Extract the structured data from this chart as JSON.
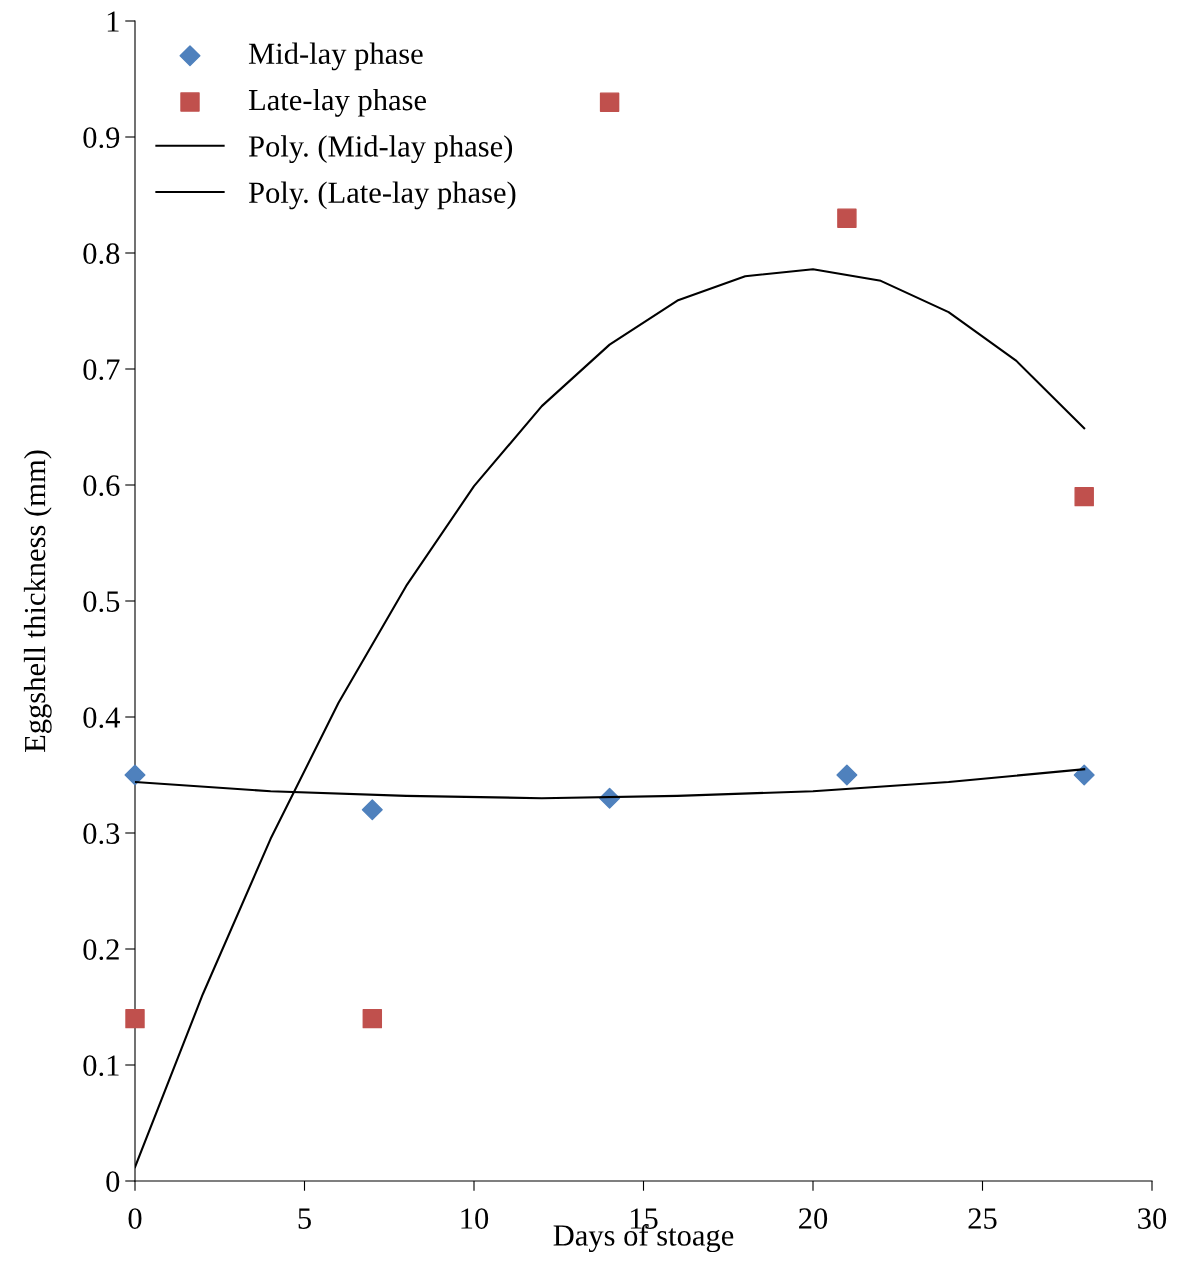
{
  "chart_data": {
    "type": "scatter",
    "xlabel": "Days of stoage",
    "ylabel": "Eggshell thickness (mm)",
    "xlim": [
      0,
      30
    ],
    "xticks": [
      0,
      5,
      10,
      15,
      20,
      25,
      30
    ],
    "ylim": [
      0,
      1
    ],
    "yticks": [
      0,
      {
        "value": 0.1,
        "label": "0.1"
      },
      {
        "value": 0.2,
        "label": "0.2"
      },
      {
        "value": 0.3,
        "label": "0.3"
      },
      {
        "value": 0.4,
        "label": "0.4"
      },
      {
        "value": 0.5,
        "label": "0.5"
      },
      {
        "value": 0.6,
        "label": "0.6"
      },
      {
        "value": 0.7,
        "label": "0.7"
      },
      {
        "value": 0.8,
        "label": "0.8"
      },
      {
        "value": 0.9,
        "label": "0.9"
      },
      1
    ],
    "grid": false,
    "legend": "top left",
    "series": [
      {
        "name": "Mid-lay phase",
        "marker": "diamond",
        "color": "#4f81bd",
        "x": [
          0,
          7,
          14,
          21,
          28
        ],
        "values": [
          0.35,
          0.32,
          0.33,
          0.35,
          0.35
        ]
      },
      {
        "name": "Late-lay phase",
        "marker": "square",
        "color": "#c0504d",
        "x": [
          0,
          7,
          14,
          21,
          28
        ],
        "values": [
          0.14,
          0.14,
          0.93,
          0.83,
          0.59
        ]
      },
      {
        "name": "Poly. (Mid-lay phase)",
        "type": "line",
        "marker": "none",
        "line_style": "solid",
        "color": "#000000",
        "x": [
          0,
          4,
          8,
          12,
          16,
          20,
          24,
          28
        ],
        "values": [
          0.344,
          0.336,
          0.332,
          0.33,
          0.332,
          0.336,
          0.344,
          0.355
        ]
      },
      {
        "name": "Poly. (Late-lay phase)",
        "type": "line",
        "marker": "none",
        "line_style": "solid",
        "color": "#000000",
        "x": [
          0,
          2,
          4,
          6,
          8,
          10,
          12,
          14,
          16,
          18,
          20,
          22,
          24,
          26,
          28
        ],
        "values": [
          0.012,
          0.161,
          0.295,
          0.412,
          0.513,
          0.599,
          0.668,
          0.721,
          0.759,
          0.78,
          0.786,
          0.776,
          0.749,
          0.707,
          0.649
        ]
      }
    ]
  }
}
